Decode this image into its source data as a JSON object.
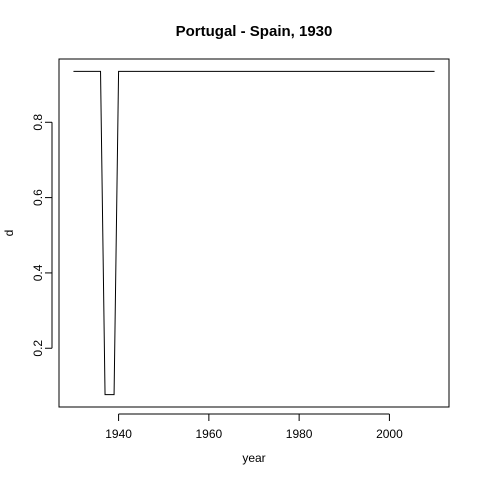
{
  "chart_data": {
    "type": "line",
    "title": "Portugal - Spain, 1930",
    "xlabel": "year",
    "ylabel": "d",
    "xlim": [
      1926.8,
      2013.2
    ],
    "ylim": [
      0.044,
      0.968
    ],
    "x_ticks": [
      1940,
      1960,
      1980,
      2000
    ],
    "y_ticks": [
      0.2,
      0.4,
      0.6,
      0.8
    ],
    "x_tick_labels": [
      "1940",
      "1960",
      "1980",
      "2000"
    ],
    "y_tick_labels": [
      "0.2",
      "0.4",
      "0.6",
      "0.8"
    ],
    "grid": false,
    "line_color": "#000000",
    "series": [
      {
        "x": [
          1930,
          1931,
          1932,
          1933,
          1934,
          1935,
          1936,
          1937,
          1938,
          1939,
          1940,
          1941,
          1950,
          1960,
          1970,
          1980,
          1990,
          2000,
          2010
        ],
        "y": [
          0.935,
          0.935,
          0.935,
          0.935,
          0.935,
          0.935,
          0.935,
          0.077,
          0.077,
          0.077,
          0.935,
          0.935,
          0.935,
          0.935,
          0.935,
          0.935,
          0.935,
          0.935,
          0.935
        ]
      }
    ]
  }
}
